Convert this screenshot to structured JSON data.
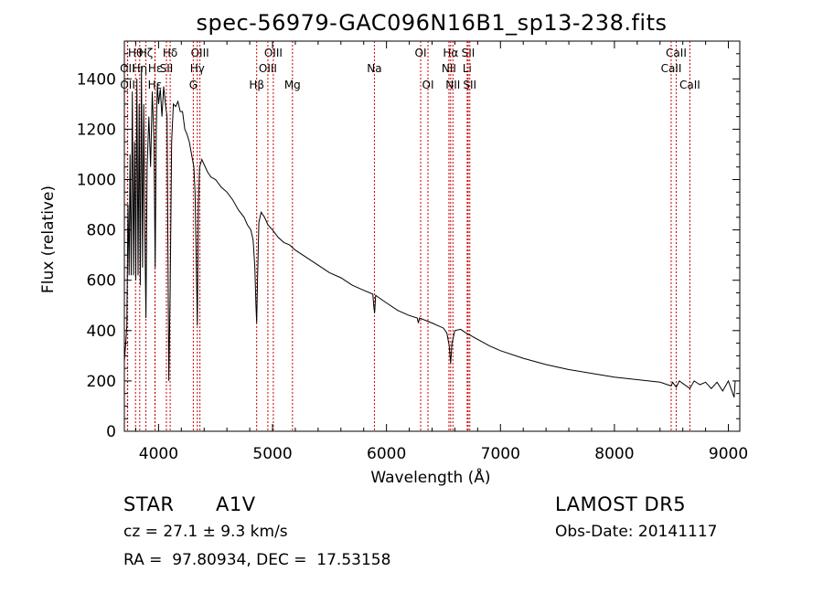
{
  "chart_data": {
    "type": "line",
    "title": "spec-56979-GAC096N16B1_sp13-238.fits",
    "xlabel": "Wavelength (Å)",
    "ylabel": "Flux (relative)",
    "xlim": [
      3700,
      9100
    ],
    "ylim": [
      0,
      1550
    ],
    "xticks": [
      4000,
      5000,
      6000,
      7000,
      8000,
      9000
    ],
    "yticks": [
      0,
      200,
      400,
      600,
      800,
      1000,
      1200,
      1400
    ],
    "grid": false,
    "line_color": "#000000",
    "marker_color": "#cc0000",
    "spectrum": {
      "x": [
        3700,
        3712,
        3722,
        3732,
        3742,
        3750,
        3760,
        3770,
        3780,
        3790,
        3800,
        3810,
        3820,
        3830,
        3840,
        3850,
        3860,
        3870,
        3880,
        3889,
        3900,
        3915,
        3930,
        3945,
        3960,
        3970,
        3980,
        3990,
        4000,
        4015,
        4030,
        4045,
        4060,
        4075,
        4090,
        4102,
        4115,
        4130,
        4150,
        4170,
        4190,
        4210,
        4230,
        4250,
        4270,
        4290,
        4310,
        4320,
        4330,
        4340,
        4350,
        4360,
        4380,
        4400,
        4430,
        4460,
        4500,
        4550,
        4600,
        4650,
        4700,
        4750,
        4780,
        4810,
        4830,
        4845,
        4855,
        4861,
        4868,
        4880,
        4900,
        4930,
        4960,
        5000,
        5050,
        5100,
        5150,
        5200,
        5300,
        5400,
        5500,
        5600,
        5700,
        5800,
        5880,
        5890,
        5896,
        5905,
        5920,
        6000,
        6100,
        6200,
        6270,
        6280,
        6290,
        6400,
        6450,
        6500,
        6530,
        6550,
        6563,
        6575,
        6600,
        6650,
        6700,
        6800,
        6900,
        7000,
        7200,
        7400,
        7600,
        7800,
        8000,
        8200,
        8400,
        8498,
        8510,
        8542,
        8570,
        8600,
        8662,
        8700,
        8750,
        8800,
        8850,
        8900,
        8950,
        9000,
        9050,
        9060
      ],
      "y": [
        280,
        350,
        420,
        900,
        620,
        1100,
        620,
        1350,
        620,
        1150,
        600,
        1400,
        620,
        1300,
        580,
        1450,
        650,
        1300,
        800,
        450,
        1050,
        1250,
        1050,
        1350,
        1150,
        650,
        1200,
        1380,
        1300,
        1360,
        1250,
        1370,
        1300,
        1250,
        200,
        560,
        1150,
        1300,
        1290,
        1310,
        1270,
        1270,
        1200,
        1180,
        1150,
        1100,
        1050,
        950,
        700,
        420,
        900,
        1050,
        1080,
        1060,
        1030,
        1010,
        1000,
        970,
        950,
        920,
        880,
        850,
        820,
        800,
        760,
        650,
        500,
        430,
        600,
        830,
        870,
        850,
        820,
        800,
        770,
        750,
        740,
        720,
        690,
        660,
        630,
        610,
        580,
        560,
        545,
        490,
        470,
        540,
        535,
        510,
        480,
        460,
        450,
        430,
        450,
        430,
        420,
        410,
        390,
        340,
        270,
        350,
        400,
        405,
        390,
        365,
        340,
        320,
        290,
        265,
        245,
        230,
        215,
        205,
        195,
        180,
        195,
        175,
        200,
        190,
        170,
        200,
        185,
        195,
        170,
        195,
        160,
        200,
        135,
        200
      ]
    },
    "line_markers": [
      {
        "label": "Hθ",
        "x": 3798,
        "row": 1
      },
      {
        "label": "OII",
        "x": 3727,
        "row": 2
      },
      {
        "label": "OII",
        "x": 3729,
        "row": 3
      },
      {
        "label": "Hζ",
        "x": 3889,
        "row": 1
      },
      {
        "label": "Hη",
        "x": 3835,
        "row": 2
      },
      {
        "label": "Hε",
        "x": 3970,
        "row": 2
      },
      {
        "label": "Hε",
        "x": 3968,
        "row": 3
      },
      {
        "label": "Hδ",
        "x": 4102,
        "row": 1
      },
      {
        "label": "SII",
        "x": 4069,
        "row": 2
      },
      {
        "label": "OIII",
        "x": 4363,
        "row": 1
      },
      {
        "label": "Hγ",
        "x": 4340,
        "row": 2
      },
      {
        "label": "G",
        "x": 4305,
        "row": 3
      },
      {
        "label": "OIII",
        "x": 5007,
        "row": 1
      },
      {
        "label": "OIII",
        "x": 4959,
        "row": 2
      },
      {
        "label": "Hβ",
        "x": 4861,
        "row": 3
      },
      {
        "label": "Mg",
        "x": 5175,
        "row": 3
      },
      {
        "label": "Na",
        "x": 5894,
        "row": 2
      },
      {
        "label": "OI",
        "x": 6300,
        "row": 1
      },
      {
        "label": "OI",
        "x": 6364,
        "row": 3
      },
      {
        "label": "Hα",
        "x": 6563,
        "row": 1
      },
      {
        "label": "SII",
        "x": 6717,
        "row": 1
      },
      {
        "label": "NII",
        "x": 6548,
        "row": 2
      },
      {
        "label": "Li",
        "x": 6708,
        "row": 2
      },
      {
        "label": "NII",
        "x": 6583,
        "row": 3
      },
      {
        "label": "SII",
        "x": 6731,
        "row": 3
      },
      {
        "label": "CaII",
        "x": 8542,
        "row": 1
      },
      {
        "label": "CaII",
        "x": 8498,
        "row": 2
      },
      {
        "label": "CaII",
        "x": 8662,
        "row": 3
      }
    ]
  },
  "info": {
    "class_label": "STAR",
    "subclass": "A1V",
    "cz": "cz = 27.1 ± 9.3 km/s",
    "coords": "RA =  97.80934, DEC =  17.53158",
    "survey": "LAMOST DR5",
    "obs_date": "Obs-Date: 20141117"
  }
}
